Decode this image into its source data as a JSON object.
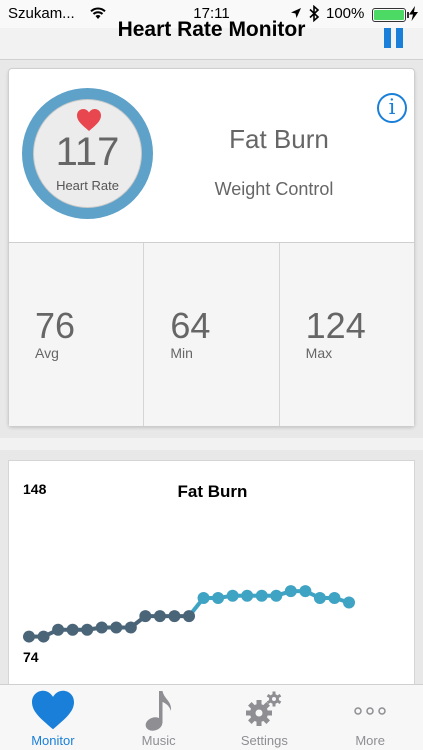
{
  "status": {
    "carrier": "Szukam...",
    "time": "17:11",
    "battery": "100%"
  },
  "nav": {
    "title": "Heart Rate Monitor"
  },
  "monitor": {
    "heart_rate": "117",
    "heart_rate_label": "Heart Rate",
    "zone_name": "Fat Burn",
    "zone_desc": "Weight Control",
    "info_label": "i",
    "stats": [
      {
        "value": "76",
        "label": "Avg"
      },
      {
        "value": "64",
        "label": "Min"
      },
      {
        "value": "124",
        "label": "Max"
      }
    ]
  },
  "chart_data": {
    "type": "line",
    "title": "Fat Burn",
    "ylim": [
      74,
      148
    ],
    "y_tick_labels": [
      "148",
      "74"
    ],
    "values": [
      83,
      83,
      86,
      86,
      86,
      87,
      87,
      87,
      92,
      92,
      92,
      92,
      100,
      100,
      101,
      101,
      101,
      101,
      103,
      103,
      100,
      100,
      98
    ],
    "colors": {
      "low": "#4a6478",
      "high": "#3fa3c4"
    },
    "threshold_index": 12
  },
  "tabs": [
    {
      "label": "Monitor",
      "icon": "heart-icon",
      "active": true
    },
    {
      "label": "Music",
      "icon": "music-note-icon",
      "active": false
    },
    {
      "label": "Settings",
      "icon": "gears-icon",
      "active": false
    },
    {
      "label": "More",
      "icon": "more-dots-icon",
      "active": false
    }
  ],
  "colors": {
    "accent": "#1a7fd8",
    "ring": "#5ea1c9",
    "heart": "#e8474f"
  }
}
